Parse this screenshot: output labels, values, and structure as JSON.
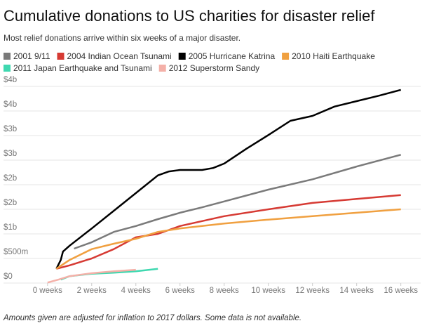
{
  "chart_data": {
    "type": "line",
    "title": "Cumulative donations to US charities for disaster relief",
    "subtitle": "Most relief donations arrive within six weeks of a major disaster.",
    "note": "Amounts given are adjusted for inflation to 2017 dollars. Some data is not available.",
    "xlim": [
      -1.2,
      16.9
    ],
    "xticks": [
      {
        "value": 0,
        "label": "0 weeks"
      },
      {
        "value": 2,
        "label": "2 weeks"
      },
      {
        "value": 4,
        "label": "4 weeks"
      },
      {
        "value": 6,
        "label": "6 weeks"
      },
      {
        "value": 8,
        "label": "8 weeks"
      },
      {
        "value": 10,
        "label": "10 weeks"
      },
      {
        "value": 12,
        "label": "12 weeks"
      },
      {
        "value": 14,
        "label": "14 weeks"
      },
      {
        "value": 16,
        "label": "16 weeks"
      }
    ],
    "ylim": [
      0,
      4
    ],
    "yticks": [
      {
        "value": 0,
        "label": "$0"
      },
      {
        "value": 0.5,
        "label": "$500m"
      },
      {
        "value": 1,
        "label": "$1b"
      },
      {
        "value": 1.5,
        "label": "$2b"
      },
      {
        "value": 2,
        "label": "$2b"
      },
      {
        "value": 2.5,
        "label": "$3b"
      },
      {
        "value": 3,
        "label": "$3b"
      },
      {
        "value": 3.5,
        "label": "$4b"
      },
      {
        "value": 4,
        "label": "$4b"
      }
    ],
    "grid": true,
    "series": [
      {
        "name": "2001 9/11",
        "color": "#7a7a7a",
        "x": [
          1.2,
          2,
          3,
          4,
          5,
          6,
          7,
          8,
          10,
          12,
          14,
          16
        ],
        "values": [
          0.7,
          0.83,
          1.04,
          1.16,
          1.3,
          1.43,
          1.54,
          1.66,
          1.9,
          2.11,
          2.37,
          2.61
        ]
      },
      {
        "name": "2004 Indian Ocean Tsunami",
        "color": "#d63a33",
        "x": [
          0.4,
          1,
          2,
          3,
          4,
          5,
          6,
          7,
          8,
          10,
          12,
          14,
          16
        ],
        "values": [
          0.29,
          0.36,
          0.5,
          0.69,
          0.93,
          1.0,
          1.16,
          1.26,
          1.36,
          1.5,
          1.63,
          1.71,
          1.79
        ]
      },
      {
        "name": "2005 Hurricane Katrina",
        "color": "#000000",
        "x": [
          0.4,
          0.6,
          0.7,
          1,
          2,
          3,
          4,
          5,
          5.5,
          6,
          7,
          7.5,
          8,
          9,
          10,
          11,
          12,
          13,
          14,
          15,
          16
        ],
        "values": [
          0.29,
          0.47,
          0.64,
          0.76,
          1.11,
          1.47,
          1.83,
          2.19,
          2.27,
          2.3,
          2.3,
          2.34,
          2.43,
          2.73,
          3.01,
          3.3,
          3.4,
          3.59,
          3.7,
          3.81,
          3.93
        ]
      },
      {
        "name": "2010 Haiti Earthquake",
        "color": "#f0a040",
        "x": [
          0.4,
          1,
          2,
          3,
          4,
          5,
          6,
          8,
          10,
          12,
          14,
          16
        ],
        "values": [
          0.29,
          0.47,
          0.69,
          0.8,
          0.9,
          1.04,
          1.11,
          1.21,
          1.29,
          1.36,
          1.43,
          1.5
        ]
      },
      {
        "name": "2011 Japan Earthquake and Tsunami",
        "color": "#3fd8b0",
        "x": [
          0.6,
          1,
          2,
          3,
          4,
          5
        ],
        "values": [
          0.07,
          0.14,
          0.19,
          0.21,
          0.24,
          0.29
        ]
      },
      {
        "name": "2012 Superstorm Sandy",
        "color": "#f4b0a8",
        "x": [
          0,
          0.5,
          1,
          2,
          3,
          4
        ],
        "values": [
          0.01,
          0.07,
          0.14,
          0.2,
          0.24,
          0.27
        ]
      }
    ]
  }
}
